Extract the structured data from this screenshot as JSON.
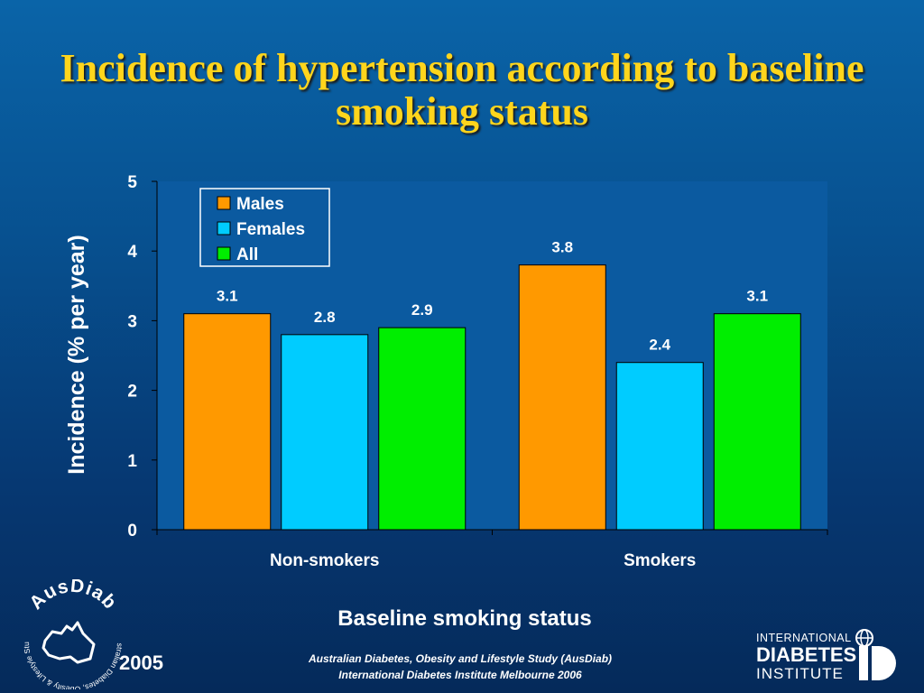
{
  "slide": {
    "title": "Incidence of hypertension according to baseline smoking status",
    "footer_line1": "Australian Diabetes, Obesity and Lifestyle Study (AusDiab)",
    "footer_line2": "International Diabetes Institute Melbourne 2006",
    "year": "2005",
    "left_logo_text": "AusDiab",
    "left_logo_ring_text": "Australian Diabetes, Obesity & Lifestyle Study",
    "right_logo_line1": "INTERNATIONAL",
    "right_logo_line2": "DIABETES",
    "right_logo_line3": "INSTITUTE"
  },
  "colors": {
    "plot_background": "#0b5aa0",
    "males": "#ff9900",
    "females": "#00ccff",
    "all": "#00ee00",
    "title": "#ffd51c"
  },
  "chart_data": {
    "type": "bar",
    "title": "",
    "xlabel": "Baseline smoking status",
    "ylabel": "Incidence (% per year)",
    "categories": [
      "Non-smokers",
      "Smokers"
    ],
    "ylim": [
      0,
      5
    ],
    "yticks": [
      "0",
      "1",
      "2",
      "3",
      "4",
      "5"
    ],
    "series": [
      {
        "name": "Males",
        "values": [
          3.1,
          3.8
        ],
        "labels": [
          "3.1",
          "3.8"
        ]
      },
      {
        "name": "Females",
        "values": [
          2.8,
          2.4
        ],
        "labels": [
          "2.8",
          "2.4"
        ]
      },
      {
        "name": "All",
        "values": [
          2.9,
          3.1
        ],
        "labels": [
          "2.9",
          "3.1"
        ]
      }
    ],
    "legend_position": "top-left",
    "grid": false
  }
}
